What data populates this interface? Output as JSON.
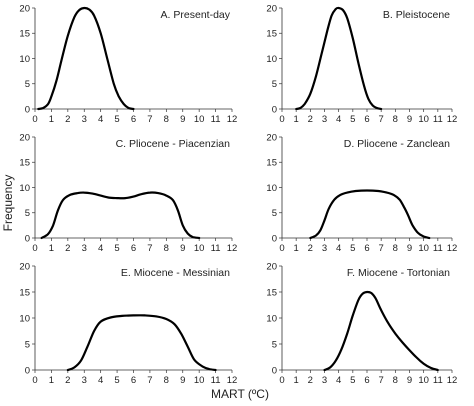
{
  "y_axis_label": "Frequency",
  "x_axis_label": "MART (ºC)",
  "chart_data": [
    {
      "type": "line",
      "title": "A. Present-day",
      "xlim": [
        0,
        12
      ],
      "ylim": [
        0,
        20
      ],
      "xticks": [
        0,
        1,
        2,
        3,
        4,
        5,
        6,
        7,
        8,
        9,
        10,
        11,
        12
      ],
      "yticks": [
        0,
        5,
        10,
        15,
        20
      ],
      "x": [
        0.2,
        0.5,
        0.8,
        1.0,
        1.3,
        1.6,
        2.0,
        2.4,
        2.7,
        3.0,
        3.3,
        3.6,
        4.0,
        4.4,
        4.8,
        5.1,
        5.4,
        5.7,
        6.0
      ],
      "y": [
        0,
        0.2,
        1.0,
        2.5,
        5.5,
        9.5,
        14.5,
        18.2,
        19.6,
        20.0,
        19.7,
        18.5,
        15.0,
        10.0,
        5.0,
        2.5,
        1.0,
        0.2,
        0
      ]
    },
    {
      "type": "line",
      "title": "B. Pleistocene",
      "xlim": [
        0,
        12
      ],
      "ylim": [
        0,
        20
      ],
      "xticks": [
        0,
        1,
        2,
        3,
        4,
        5,
        6,
        7,
        8,
        9,
        10,
        11,
        12
      ],
      "yticks": [
        0,
        5,
        10,
        15,
        20
      ],
      "x": [
        1.0,
        1.3,
        1.6,
        2.0,
        2.4,
        2.8,
        3.2,
        3.5,
        3.8,
        4.0,
        4.3,
        4.6,
        5.0,
        5.4,
        5.8,
        6.1,
        6.4,
        6.7,
        7.0
      ],
      "y": [
        0,
        0.2,
        1.0,
        3.0,
        6.5,
        11.0,
        15.5,
        18.5,
        19.8,
        20.0,
        19.6,
        18.0,
        14.0,
        9.0,
        4.5,
        2.0,
        0.7,
        0.2,
        0
      ]
    },
    {
      "type": "line",
      "title": "C. Pliocene - Piacenzian",
      "xlim": [
        0,
        12
      ],
      "ylim": [
        0,
        20
      ],
      "xticks": [
        0,
        1,
        2,
        3,
        4,
        5,
        6,
        7,
        8,
        9,
        10,
        11,
        12
      ],
      "yticks": [
        0,
        5,
        10,
        15,
        20
      ],
      "x": [
        0.4,
        0.8,
        1.1,
        1.4,
        1.7,
        2.1,
        2.6,
        3.0,
        3.5,
        4.0,
        4.5,
        5.0,
        5.5,
        6.0,
        6.5,
        7.0,
        7.5,
        8.0,
        8.4,
        8.7,
        9.0,
        9.3,
        9.6,
        10.0
      ],
      "y": [
        0,
        0.8,
        2.5,
        5.5,
        7.5,
        8.5,
        8.9,
        9.0,
        8.8,
        8.4,
        8.0,
        7.9,
        7.9,
        8.2,
        8.7,
        9.0,
        8.9,
        8.4,
        7.5,
        5.5,
        2.5,
        0.9,
        0.2,
        0
      ]
    },
    {
      "type": "line",
      "title": "D. Pliocene - Zanclean",
      "xlim": [
        0,
        12
      ],
      "ylim": [
        0,
        20
      ],
      "xticks": [
        0,
        1,
        2,
        3,
        4,
        5,
        6,
        7,
        8,
        9,
        10,
        11,
        12
      ],
      "yticks": [
        0,
        5,
        10,
        15,
        20
      ],
      "x": [
        2.0,
        2.4,
        2.7,
        3.0,
        3.3,
        3.7,
        4.1,
        4.6,
        5.2,
        6.0,
        6.8,
        7.4,
        7.9,
        8.3,
        8.6,
        8.9,
        9.2,
        9.6,
        10.0,
        10.4
      ],
      "y": [
        0,
        0.5,
        1.5,
        3.5,
        5.8,
        7.6,
        8.5,
        9.0,
        9.3,
        9.4,
        9.3,
        9.0,
        8.5,
        7.6,
        6.2,
        4.5,
        2.6,
        1.0,
        0.3,
        0
      ]
    },
    {
      "type": "line",
      "title": "E. Miocene - Messinian",
      "xlim": [
        0,
        12
      ],
      "ylim": [
        0,
        20
      ],
      "xticks": [
        0,
        1,
        2,
        3,
        4,
        5,
        6,
        7,
        8,
        9,
        10,
        11,
        12
      ],
      "yticks": [
        0,
        5,
        10,
        15,
        20
      ],
      "x": [
        2.0,
        2.4,
        2.8,
        3.2,
        3.6,
        4.0,
        4.6,
        5.3,
        6.0,
        6.7,
        7.4,
        8.0,
        8.5,
        8.9,
        9.3,
        9.7,
        10.2,
        10.6,
        11.0
      ],
      "y": [
        0,
        0.5,
        1.8,
        4.5,
        7.5,
        9.3,
        10.1,
        10.4,
        10.5,
        10.5,
        10.3,
        9.8,
        8.8,
        7.0,
        4.5,
        2.0,
        0.7,
        0.2,
        0
      ]
    },
    {
      "type": "line",
      "title": "F. Miocene - Tortonian",
      "xlim": [
        0,
        12
      ],
      "ylim": [
        0,
        20
      ],
      "xticks": [
        0,
        1,
        2,
        3,
        4,
        5,
        6,
        7,
        8,
        9,
        10,
        11,
        12
      ],
      "yticks": [
        0,
        5,
        10,
        15,
        20
      ],
      "x": [
        3.0,
        3.4,
        3.8,
        4.2,
        4.6,
        5.0,
        5.4,
        5.7,
        6.0,
        6.3,
        6.6,
        7.0,
        7.5,
        8.0,
        8.5,
        9.0,
        9.5,
        10.0,
        10.5,
        11.0
      ],
      "y": [
        0,
        0.5,
        1.8,
        4.0,
        7.0,
        10.5,
        13.5,
        14.7,
        15.0,
        14.8,
        13.8,
        11.5,
        9.0,
        7.0,
        5.3,
        3.8,
        2.4,
        1.2,
        0.4,
        0
      ]
    }
  ]
}
